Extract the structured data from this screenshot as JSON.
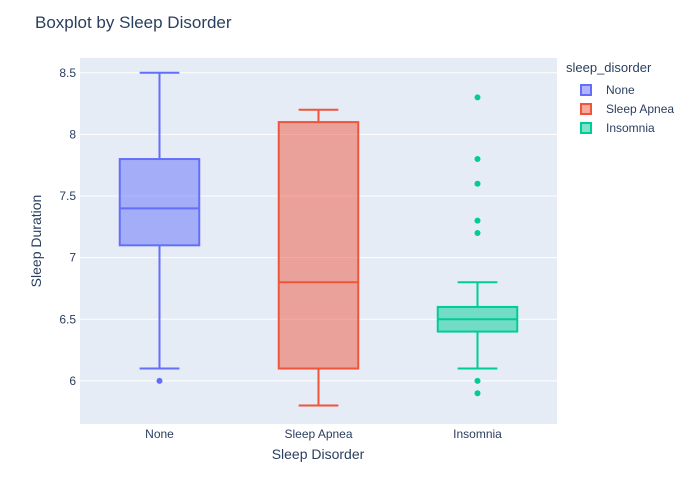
{
  "chart_data": {
    "type": "box",
    "title": "Boxplot by Sleep Disorder",
    "xlabel": "Sleep Disorder",
    "ylabel": "Sleep Duration",
    "ylim": [
      5.65,
      8.62
    ],
    "y_ticks": [
      {
        "value": 6,
        "label": "6"
      },
      {
        "value": 6.5,
        "label": "6.5"
      },
      {
        "value": 7,
        "label": "7"
      },
      {
        "value": 7.5,
        "label": "7.5"
      },
      {
        "value": 8,
        "label": "8"
      },
      {
        "value": 8.5,
        "label": "8.5"
      }
    ],
    "categories": [
      "None",
      "Sleep Apnea",
      "Insomnia"
    ],
    "grid": true,
    "legend_position": "right",
    "legend_title": "sleep_disorder",
    "series": [
      {
        "name": "None",
        "color": "#636efa",
        "fill": "rgba(99,110,250,0.5)",
        "whisker_low": 6.1,
        "q1": 7.1,
        "median": 7.4,
        "q3": 7.8,
        "whisker_high": 8.5,
        "outliers": [
          6.0
        ]
      },
      {
        "name": "Sleep Apnea",
        "color": "#ef553b",
        "fill": "rgba(239,85,59,0.5)",
        "whisker_low": 5.8,
        "q1": 6.1,
        "median": 6.8,
        "q3": 8.1,
        "whisker_high": 8.2,
        "outliers": []
      },
      {
        "name": "Insomnia",
        "color": "#00cc96",
        "fill": "rgba(0,204,150,0.5)",
        "whisker_low": 6.1,
        "q1": 6.4,
        "median": 6.5,
        "q3": 6.6,
        "whisker_high": 6.8,
        "outliers": [
          8.3,
          7.8,
          7.6,
          7.3,
          7.2,
          6.0,
          5.9
        ]
      }
    ]
  }
}
